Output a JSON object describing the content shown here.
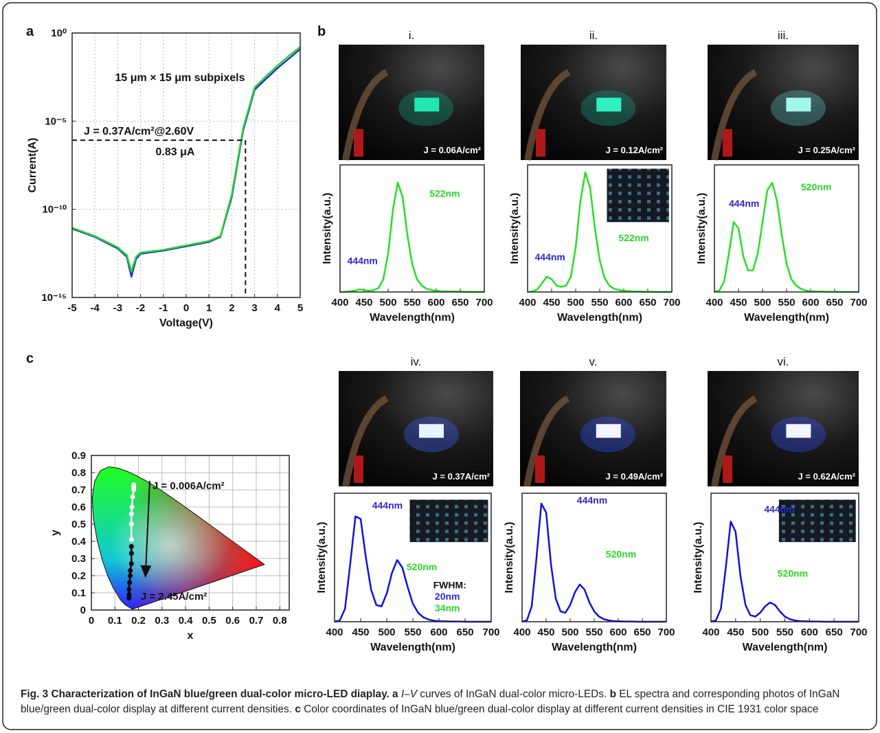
{
  "panels": [
    "a",
    "b",
    "c"
  ],
  "chart_data": [
    {
      "type": "line",
      "xlabel": "Voltage(V)",
      "ylabel": "Current(A)",
      "annotations": [
        "15 μm × 15 μm subpixels",
        "J = 0.37A/cm²@2.60V",
        "0.83 μA"
      ],
      "marker": {
        "x": 2.6,
        "y": 8.3e-07
      },
      "x": [
        -5,
        -4,
        -3,
        -2.6,
        -2.4,
        -2.2,
        -2,
        -1,
        0,
        1,
        1.5,
        2,
        2.5,
        3,
        3.5,
        4,
        4.5,
        5
      ],
      "series": [
        {
          "color": "#1f2fd8",
          "values": [
            8e-12,
            2.7e-12,
            6e-13,
            2e-13,
            1.5e-14,
            1.5e-13,
            3e-13,
            4.5e-13,
            8e-13,
            1.4e-12,
            2.7e-12,
            5e-10,
            3e-06,
            0.0006,
            0.0025,
            0.01,
            0.035,
            0.12
          ]
        },
        {
          "color": "#2bd62b",
          "values": [
            9e-12,
            3e-12,
            7e-13,
            2.5e-13,
            3e-14,
            2e-13,
            3.5e-13,
            5e-13,
            9e-13,
            1.6e-12,
            3e-12,
            7e-10,
            4e-06,
            0.0008,
            0.0035,
            0.014,
            0.05,
            0.16
          ]
        }
      ],
      "xlim": [
        -5,
        5
      ],
      "ylim": [
        1e-15,
        1
      ],
      "log_y": true,
      "grid": true,
      "xticks": [
        -5,
        -4,
        -3,
        -2,
        -1,
        0,
        1,
        2,
        3,
        4,
        5
      ],
      "yticks": [
        {
          "value": 1e-15,
          "label": "10⁻¹⁵"
        },
        {
          "value": 1e-10,
          "label": "10⁻¹⁰"
        },
        {
          "value": 1e-05,
          "label": "10⁻⁵"
        },
        {
          "value": 1,
          "label": "10⁰"
        }
      ]
    },
    {
      "type": "line",
      "title": "i.",
      "photo_label": "J = 0.06A/cm²",
      "xlabel": "Wavelength(nm)",
      "ylabel": "Intensity(a.u.)",
      "annotations": [
        {
          "text": "522nm",
          "color": "#27d827"
        },
        {
          "text": "444nm",
          "color": "#2a2ad0"
        }
      ],
      "x": [
        400,
        410,
        420,
        430,
        440,
        450,
        460,
        470,
        480,
        490,
        500,
        510,
        520,
        530,
        540,
        550,
        560,
        570,
        580,
        590,
        600,
        610,
        620,
        630,
        640,
        650,
        660,
        670,
        680,
        690,
        700
      ],
      "series": [
        {
          "color": "#22e022",
          "values": [
            0,
            0,
            0.005,
            0.01,
            0.02,
            0.015,
            0.01,
            0.015,
            0.03,
            0.1,
            0.3,
            0.65,
            0.86,
            0.75,
            0.45,
            0.22,
            0.1,
            0.05,
            0.025,
            0.015,
            0.01,
            0.005,
            0.005,
            0.004,
            0.003,
            0.002,
            0.001,
            0,
            0,
            0,
            0
          ]
        }
      ],
      "xlim": [
        400,
        700
      ],
      "ylim": [
        0,
        1
      ],
      "xticks": [
        400,
        450,
        500,
        550,
        600,
        650,
        700
      ]
    },
    {
      "type": "line",
      "title": "ii.",
      "photo_label": "J = 0.12A/cm²",
      "xlabel": "Wavelength(nm)",
      "ylabel": "Intensity(a.u.)",
      "annotations": [
        {
          "text": "444nm",
          "color": "#2a2ad0"
        },
        {
          "text": "522nm",
          "color": "#27d827"
        }
      ],
      "x": [
        400,
        410,
        420,
        430,
        440,
        450,
        460,
        470,
        480,
        490,
        500,
        510,
        520,
        530,
        540,
        550,
        560,
        570,
        580,
        590,
        600,
        610,
        620,
        630,
        640,
        650,
        660,
        670,
        680,
        690,
        700
      ],
      "series": [
        {
          "color": "#22e022",
          "values": [
            0,
            0.005,
            0.02,
            0.07,
            0.12,
            0.1,
            0.05,
            0.04,
            0.05,
            0.12,
            0.35,
            0.72,
            0.94,
            0.82,
            0.5,
            0.25,
            0.11,
            0.05,
            0.025,
            0.015,
            0.01,
            0.006,
            0.004,
            0.003,
            0.002,
            0.001,
            0.001,
            0,
            0,
            0,
            0
          ]
        }
      ],
      "xlim": [
        400,
        700
      ],
      "ylim": [
        0,
        1
      ],
      "xticks": [
        400,
        450,
        500,
        550,
        600,
        650,
        700
      ]
    },
    {
      "type": "line",
      "title": "iii.",
      "photo_label": "J = 0.25A/cm²",
      "xlabel": "Wavelength(nm)",
      "ylabel": "Intensity(a.u.)",
      "annotations": [
        {
          "text": "444nm",
          "color": "#2a2ad0"
        },
        {
          "text": "520nm",
          "color": "#27d827"
        }
      ],
      "x": [
        400,
        410,
        420,
        430,
        440,
        450,
        460,
        470,
        480,
        490,
        500,
        510,
        520,
        530,
        540,
        550,
        560,
        570,
        580,
        590,
        600,
        610,
        620,
        630,
        640,
        650,
        660,
        670,
        680,
        690,
        700
      ],
      "series": [
        {
          "color": "#22e022",
          "values": [
            0,
            0.01,
            0.08,
            0.3,
            0.55,
            0.5,
            0.28,
            0.17,
            0.17,
            0.3,
            0.55,
            0.8,
            0.86,
            0.72,
            0.45,
            0.22,
            0.1,
            0.05,
            0.025,
            0.012,
            0.006,
            0.004,
            0.003,
            0.002,
            0.001,
            0.001,
            0,
            0,
            0,
            0,
            0
          ]
        }
      ],
      "xlim": [
        400,
        700
      ],
      "ylim": [
        0,
        1
      ],
      "xticks": [
        400,
        450,
        500,
        550,
        600,
        650,
        700
      ]
    },
    {
      "type": "line",
      "title": "iv.",
      "photo_label": "J = 0.37A/cm²",
      "xlabel": "Wavelength(nm)",
      "ylabel": "Intensity(a.u.)",
      "annotations": [
        {
          "text": "444nm",
          "color": "#2a2ad0"
        },
        {
          "text": "520nm",
          "color": "#27d827"
        },
        {
          "text": "FWHM:",
          "color": "#111111"
        },
        {
          "text": "20nm",
          "color": "#2a2ad0"
        },
        {
          "text": "34nm",
          "color": "#27d827"
        }
      ],
      "x": [
        400,
        410,
        420,
        430,
        440,
        450,
        460,
        470,
        480,
        490,
        500,
        510,
        520,
        530,
        540,
        550,
        560,
        570,
        580,
        590,
        600,
        610,
        620,
        630,
        640,
        650,
        660,
        670,
        680,
        690,
        700
      ],
      "series": [
        {
          "color": "#1010e0",
          "values": [
            0,
            0.01,
            0.1,
            0.45,
            0.82,
            0.8,
            0.5,
            0.25,
            0.13,
            0.12,
            0.22,
            0.38,
            0.48,
            0.42,
            0.27,
            0.14,
            0.07,
            0.035,
            0.017,
            0.008,
            0.004,
            0.003,
            0.002,
            0.001,
            0.001,
            0,
            0,
            0,
            0,
            0,
            0
          ]
        }
      ],
      "xlim": [
        400,
        700
      ],
      "ylim": [
        0,
        1
      ],
      "xticks": [
        400,
        450,
        500,
        550,
        600,
        650,
        700
      ]
    },
    {
      "type": "line",
      "title": "v.",
      "photo_label": "J = 0.49A/cm²",
      "xlabel": "Wavelength(nm)",
      "ylabel": "Intensity(a.u.)",
      "annotations": [
        {
          "text": "444nm",
          "color": "#2a2ad0"
        },
        {
          "text": "520nm",
          "color": "#27d827"
        }
      ],
      "x": [
        400,
        410,
        420,
        430,
        440,
        450,
        460,
        470,
        480,
        490,
        500,
        510,
        520,
        530,
        540,
        550,
        560,
        570,
        580,
        590,
        600,
        610,
        620,
        630,
        640,
        650,
        660,
        670,
        680,
        690,
        700
      ],
      "series": [
        {
          "color": "#1010e0",
          "values": [
            0,
            0.01,
            0.12,
            0.5,
            0.92,
            0.85,
            0.45,
            0.18,
            0.08,
            0.07,
            0.13,
            0.23,
            0.29,
            0.25,
            0.15,
            0.08,
            0.04,
            0.02,
            0.01,
            0.005,
            0.003,
            0.002,
            0.001,
            0.001,
            0,
            0,
            0,
            0,
            0,
            0,
            0
          ]
        }
      ],
      "xlim": [
        400,
        700
      ],
      "ylim": [
        0,
        1
      ],
      "xticks": [
        400,
        450,
        500,
        550,
        600,
        650,
        700
      ]
    },
    {
      "type": "line",
      "title": "vi.",
      "photo_label": "J = 0.62A/cm²",
      "xlabel": "Wavelength(nm)",
      "ylabel": "Intensity(a.u.)",
      "annotations": [
        {
          "text": "444nm",
          "color": "#2a2ad0"
        },
        {
          "text": "520nm",
          "color": "#27d827"
        }
      ],
      "x": [
        400,
        410,
        420,
        430,
        440,
        450,
        460,
        470,
        480,
        490,
        500,
        510,
        520,
        530,
        540,
        550,
        560,
        570,
        580,
        590,
        600,
        610,
        620,
        630,
        640,
        650,
        660,
        670,
        680,
        690,
        700
      ],
      "series": [
        {
          "color": "#1010e0",
          "values": [
            0,
            0.01,
            0.1,
            0.42,
            0.78,
            0.7,
            0.35,
            0.13,
            0.05,
            0.04,
            0.07,
            0.12,
            0.15,
            0.13,
            0.08,
            0.04,
            0.02,
            0.01,
            0.005,
            0.003,
            0.002,
            0.001,
            0.001,
            0,
            0,
            0,
            0,
            0,
            0,
            0,
            0
          ]
        }
      ],
      "xlim": [
        400,
        700
      ],
      "ylim": [
        0,
        1
      ],
      "xticks": [
        400,
        450,
        500,
        550,
        600,
        650,
        700
      ]
    },
    {
      "type": "scatter",
      "xlabel": "x",
      "ylabel": "y",
      "annotations": [
        "J = 0.006A/cm²",
        "J = 2.45A/cm²"
      ],
      "locus": {
        "x": [
          0.1741,
          0.144,
          0.1241,
          0.0913,
          0.0687,
          0.0454,
          0.0235,
          0.0082,
          0.0039,
          0.0139,
          0.0389,
          0.0743,
          0.1142,
          0.1547,
          0.1929,
          0.2296,
          0.2658,
          0.3016,
          0.3373,
          0.3731,
          0.4087,
          0.4441,
          0.4788,
          0.5125,
          0.5448,
          0.5752,
          0.6029,
          0.627,
          0.6482,
          0.6658,
          0.6801,
          0.6915,
          0.7006,
          0.7347
        ],
        "y": [
          0.005,
          0.0297,
          0.0578,
          0.1327,
          0.2007,
          0.295,
          0.4127,
          0.5384,
          0.6548,
          0.7502,
          0.812,
          0.8338,
          0.8262,
          0.8059,
          0.7816,
          0.7543,
          0.7243,
          0.6923,
          0.6589,
          0.6245,
          0.5896,
          0.5547,
          0.5202,
          0.4866,
          0.4544,
          0.4242,
          0.3965,
          0.3725,
          0.3514,
          0.334,
          0.3197,
          0.3083,
          0.2993,
          0.2653
        ]
      },
      "series": [
        {
          "color": "#ffffff",
          "x": [
            0.18,
            0.18,
            0.18,
            0.18,
            0.175,
            0.172,
            0.17,
            0.17,
            0.17
          ],
          "values": [
            0.73,
            0.72,
            0.71,
            0.7,
            0.66,
            0.6,
            0.56,
            0.5,
            0.41
          ]
        },
        {
          "color": "#000000",
          "x": [
            0.17,
            0.17,
            0.17,
            0.165,
            0.165,
            0.162,
            0.16,
            0.16,
            0.16
          ],
          "values": [
            0.37,
            0.33,
            0.27,
            0.23,
            0.2,
            0.16,
            0.12,
            0.09,
            0.07
          ]
        }
      ],
      "xlim": [
        0,
        0.84
      ],
      "ylim": [
        0,
        0.9
      ],
      "grid": true,
      "xticks": [
        0,
        0.1,
        0.2,
        0.3,
        0.4,
        0.5,
        0.6,
        0.7,
        0.8
      ],
      "yticks": [
        0,
        0.1,
        0.2,
        0.3,
        0.4,
        0.5,
        0.6,
        0.7,
        0.8,
        0.9
      ]
    }
  ],
  "caption": [
    "Fig. 3 Characterization of InGaN blue/green dual-color micro-LED diaplay.",
    "a",
    "I–V",
    "curves of InGaN dual-color micro-LEDs.",
    "b",
    "EL spectra and corresponding photos of InGaN blue/green dual-color display at different current densities.",
    "c",
    "Color coordinates of InGaN blue/green dual-color display at different current densities in CIE 1931 color space"
  ]
}
